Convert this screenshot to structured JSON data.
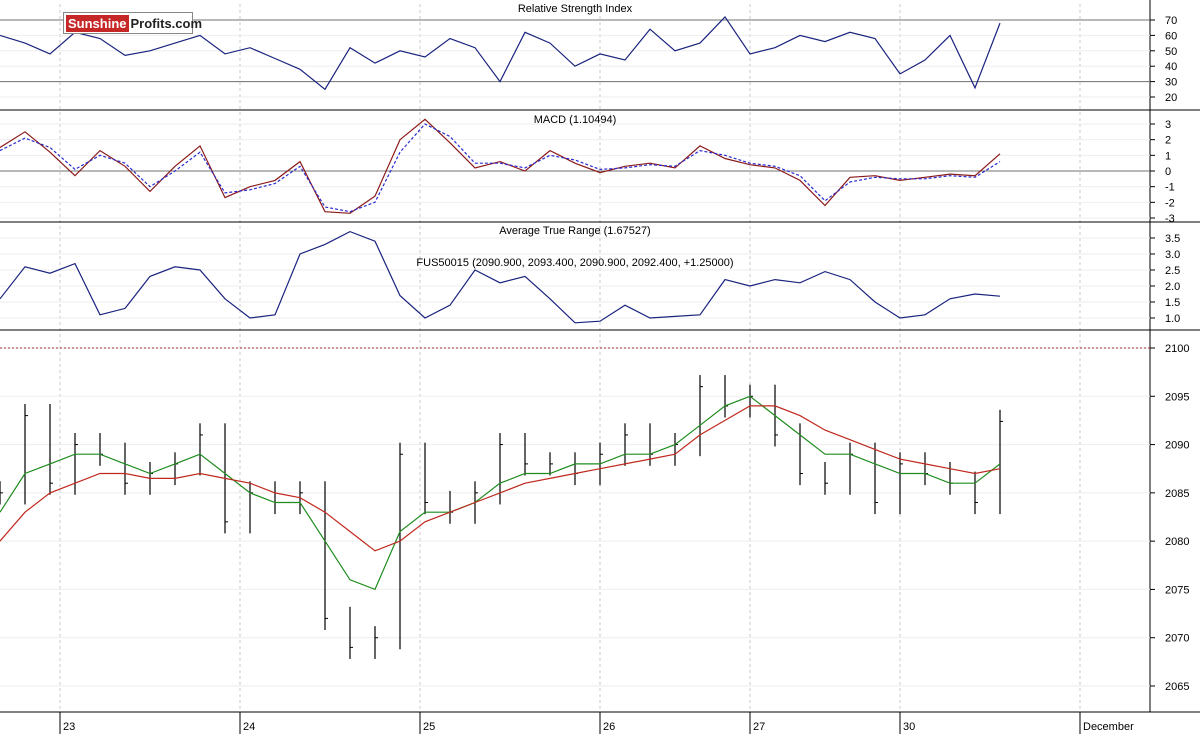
{
  "logo": {
    "part1": "Sunshine",
    "part2": "Profits.com"
  },
  "colors": {
    "price": "#000000",
    "ma_short": "#1e8c1e",
    "ma_long": "#c0281e",
    "indicator": "#1a237e",
    "macd": "#8b1a1a",
    "signal": "#2b2bd0",
    "grid": "#c8c8c8",
    "divider": "#000000"
  },
  "chart_data": [
    {
      "type": "line",
      "title": "Relative Strength Index",
      "ylim": [
        15,
        78
      ],
      "yticks": [
        "70",
        "60",
        "50",
        "40",
        "30",
        "20"
      ],
      "reference_lines": [
        70,
        30
      ],
      "x": [
        0,
        5,
        10,
        15,
        20,
        25,
        30,
        35,
        40,
        45,
        50,
        55,
        60,
        65,
        70,
        75,
        80,
        85,
        90,
        95,
        100,
        105,
        110,
        115,
        120,
        125,
        130,
        135,
        140,
        145,
        150,
        155,
        160,
        165,
        170,
        175,
        180,
        185,
        190,
        195,
        200
      ],
      "values": [
        60,
        55,
        48,
        62,
        58,
        47,
        50,
        55,
        60,
        48,
        52,
        45,
        38,
        25,
        52,
        42,
        50,
        46,
        58,
        52,
        30,
        62,
        55,
        40,
        48,
        44,
        64,
        50,
        55,
        72,
        48,
        52,
        60,
        56,
        62,
        58,
        35,
        44,
        60,
        26,
        68
      ],
      "line_color": "#1a237e"
    },
    {
      "type": "line",
      "title": "MACD (1.10494)",
      "ylim": [
        -3.3,
        3.5
      ],
      "yticks": [
        "3",
        "2",
        "1",
        "0",
        "-1",
        "-2",
        "-3"
      ],
      "reference_lines": [
        0
      ],
      "x": [
        0,
        5,
        10,
        15,
        20,
        25,
        30,
        35,
        40,
        45,
        50,
        55,
        60,
        65,
        70,
        75,
        80,
        85,
        90,
        95,
        100,
        105,
        110,
        115,
        120,
        125,
        130,
        135,
        140,
        145,
        150,
        155,
        160,
        165,
        170,
        175,
        180,
        185,
        190,
        195,
        200
      ],
      "series": [
        {
          "values": [
            1.5,
            2.5,
            1.2,
            -0.3,
            1.3,
            0.3,
            -1.3,
            0.3,
            1.6,
            -1.7,
            -1.0,
            -0.6,
            0.6,
            -2.6,
            -2.7,
            -1.6,
            2.0,
            3.3,
            1.8,
            0.2,
            0.6,
            0.0,
            1.3,
            0.5,
            -0.1,
            0.3,
            0.5,
            0.2,
            1.6,
            0.8,
            0.4,
            0.2,
            -0.6,
            -2.2,
            -0.4,
            -0.3,
            -0.6,
            -0.4,
            -0.2,
            -0.3,
            1.1
          ],
          "color": "#8b1a1a",
          "dashed": false
        },
        {
          "values": [
            1.3,
            2.1,
            1.5,
            0.1,
            1.0,
            0.5,
            -1.0,
            0.0,
            1.2,
            -1.4,
            -1.2,
            -0.8,
            0.3,
            -2.3,
            -2.6,
            -2.0,
            1.2,
            3.0,
            2.2,
            0.5,
            0.5,
            0.2,
            1.0,
            0.7,
            0.1,
            0.2,
            0.4,
            0.3,
            1.3,
            1.0,
            0.5,
            0.3,
            -0.3,
            -1.9,
            -0.7,
            -0.4,
            -0.5,
            -0.5,
            -0.3,
            -0.4,
            0.6
          ],
          "color": "#2b2bd0",
          "dashed": true
        }
      ]
    },
    {
      "type": "line",
      "title": "Average True Range (1.67527)",
      "ylim": [
        0.5,
        3.8
      ],
      "yticks": [
        "3.5",
        "3.0",
        "2.5",
        "2.0",
        "1.5",
        "1.0"
      ],
      "x": [
        0,
        5,
        10,
        15,
        20,
        25,
        30,
        35,
        40,
        45,
        50,
        55,
        60,
        65,
        70,
        75,
        80,
        85,
        90,
        95,
        100,
        105,
        110,
        115,
        120,
        125,
        130,
        135,
        140,
        145,
        150,
        155,
        160,
        165,
        170,
        175,
        180,
        185,
        190,
        195,
        200
      ],
      "values": [
        1.6,
        2.6,
        2.4,
        2.7,
        1.1,
        1.3,
        2.3,
        2.6,
        2.5,
        1.6,
        1.0,
        1.1,
        3.0,
        3.3,
        3.7,
        3.4,
        1.7,
        1.0,
        1.4,
        2.5,
        2.1,
        2.3,
        1.6,
        0.85,
        0.9,
        1.4,
        1.0,
        1.05,
        1.1,
        2.2,
        2.0,
        2.2,
        2.1,
        2.45,
        2.2,
        1.5,
        1.0,
        1.1,
        1.6,
        1.75,
        1.68
      ],
      "line_color": "#1a237e"
    },
    {
      "type": "line",
      "title": "FUS50015 (2090.900, 2093.400, 2090.900, 2092.400, +1.25000)",
      "ylim": [
        2063,
        2100.5
      ],
      "yticks": [
        "2100",
        "2095",
        "2090",
        "2085",
        "2080",
        "2075",
        "2070",
        "2065"
      ],
      "reference_lines": [
        2100
      ],
      "x_ticks": [
        {
          "pos": 12,
          "label": "23"
        },
        {
          "pos": 48,
          "label": "24"
        },
        {
          "pos": 84,
          "label": "25"
        },
        {
          "pos": 120,
          "label": "26"
        },
        {
          "pos": 150,
          "label": "27"
        },
        {
          "pos": 180,
          "label": "30"
        },
        {
          "pos": 216,
          "label": "December"
        }
      ],
      "x": [
        0,
        5,
        10,
        15,
        20,
        25,
        30,
        35,
        40,
        45,
        50,
        55,
        60,
        65,
        70,
        75,
        80,
        85,
        90,
        95,
        100,
        105,
        110,
        115,
        120,
        125,
        130,
        135,
        140,
        145,
        150,
        155,
        160,
        165,
        170,
        175,
        180,
        185,
        190,
        195,
        200
      ],
      "series": [
        {
          "name": "FUS50015",
          "values": [
            2085,
            2093,
            2086,
            2090,
            2089,
            2086,
            2087,
            2088,
            2091,
            2082,
            2085,
            2084,
            2085,
            2072,
            2069,
            2070,
            2089,
            2084,
            2083,
            2085,
            2090,
            2088,
            2088,
            2087,
            2089,
            2091,
            2089,
            2090,
            2096,
            2094,
            2095,
            2091,
            2087,
            2086,
            2089,
            2084,
            2088,
            2087,
            2086,
            2084,
            2092.4
          ],
          "color": "#000000",
          "style": "bars"
        },
        {
          "values": [
            2083,
            2087,
            2088,
            2089,
            2089,
            2088,
            2087,
            2088,
            2089,
            2087,
            2085,
            2084,
            2084,
            2080,
            2076,
            2075,
            2081,
            2083,
            2083,
            2084,
            2086,
            2087,
            2087,
            2088,
            2088,
            2089,
            2089,
            2090,
            2092,
            2094,
            2095,
            2093,
            2091,
            2089,
            2089,
            2088,
            2087,
            2087,
            2086,
            2086,
            2088
          ],
          "color": "#1e8c1e",
          "style": "line"
        },
        {
          "values": [
            2080,
            2083,
            2085,
            2086,
            2087,
            2087,
            2086.5,
            2086.5,
            2087,
            2086.5,
            2086,
            2085,
            2084.5,
            2083,
            2081,
            2079,
            2080,
            2082,
            2083,
            2084,
            2085,
            2086,
            2086.5,
            2087,
            2087.5,
            2088,
            2088.5,
            2089,
            2091,
            2092.5,
            2094,
            2094,
            2093,
            2091.5,
            2090.5,
            2089.5,
            2088.5,
            2088,
            2087.5,
            2087,
            2087.5
          ],
          "color": "#c0281e",
          "style": "line"
        }
      ]
    }
  ]
}
